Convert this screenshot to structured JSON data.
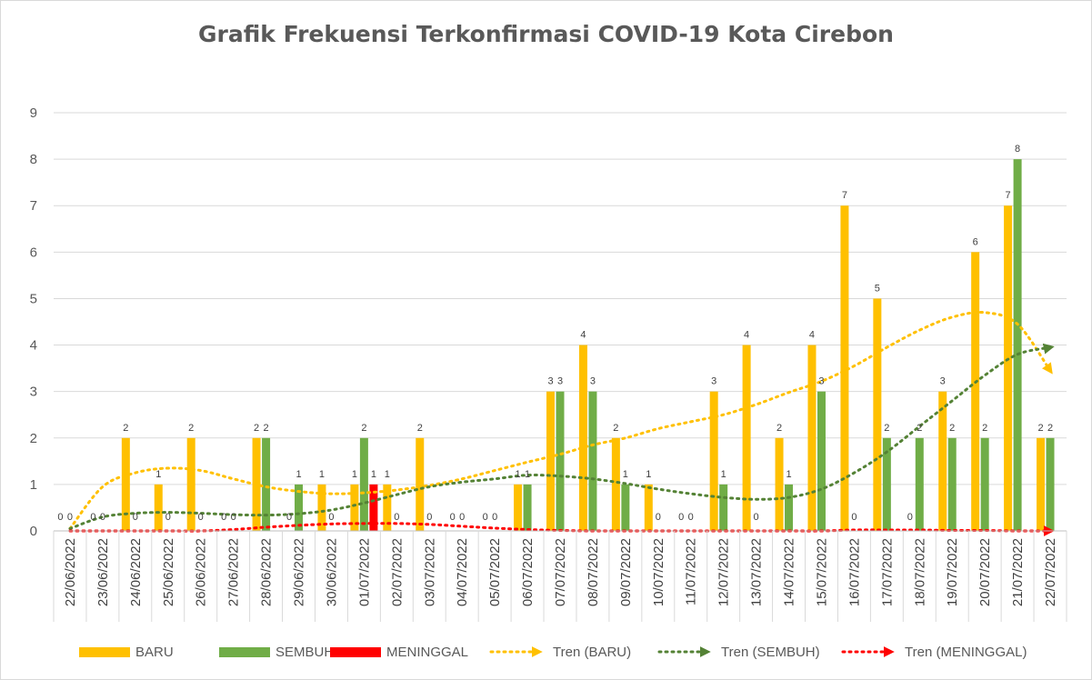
{
  "chart_data": {
    "type": "bar",
    "title": "Grafik Frekuensi Terkonfirmasi COVID-19 Kota Cirebon",
    "xlabel": "",
    "ylabel": "",
    "ylim": [
      0,
      9
    ],
    "yticks": [
      "0",
      "1",
      "2",
      "3",
      "4",
      "5",
      "6",
      "7",
      "8",
      "9"
    ],
    "grid": true,
    "legend_position": "bottom",
    "categories": [
      "22/06/2022",
      "23/06/2022",
      "24/06/2022",
      "25/06/2022",
      "26/06/2022",
      "27/06/2022",
      "28/06/2022",
      "29/06/2022",
      "30/06/2022",
      "01/07/2022",
      "02/07/2022",
      "03/07/2022",
      "04/07/2022",
      "05/07/2022",
      "06/07/2022",
      "07/07/2022",
      "08/07/2022",
      "09/07/2022",
      "10/07/2022",
      "11/07/2022",
      "12/07/2022",
      "13/07/2022",
      "14/07/2022",
      "15/07/2022",
      "16/07/2022",
      "17/07/2022",
      "18/07/2022",
      "19/07/2022",
      "20/07/2022",
      "21/07/2022",
      "22/07/2022"
    ],
    "series": [
      {
        "name": "BARU",
        "color": "#ffc000",
        "values": [
          0,
          0,
          2,
          1,
          2,
          0,
          2,
          0,
          1,
          1,
          1,
          2,
          0,
          0,
          1,
          3,
          4,
          2,
          1,
          0,
          3,
          4,
          2,
          4,
          7,
          5,
          0,
          3,
          6,
          7,
          2
        ]
      },
      {
        "name": "SEMBUH",
        "color": "#70ad47",
        "values": [
          0,
          0,
          0,
          0,
          0,
          0,
          2,
          1,
          0,
          2,
          0,
          0,
          0,
          0,
          1,
          3,
          3,
          1,
          0,
          0,
          1,
          0,
          1,
          3,
          0,
          2,
          2,
          2,
          2,
          8,
          2
        ]
      },
      {
        "name": "MENINGGAL",
        "color": "#ff0000",
        "values": [
          0,
          0,
          0,
          0,
          0,
          0,
          0,
          0,
          0,
          1,
          0,
          0,
          0,
          0,
          0,
          0,
          0,
          0,
          0,
          0,
          0,
          0,
          0,
          0,
          0,
          0,
          0,
          0,
          0,
          0,
          0
        ]
      }
    ],
    "trendlines": [
      {
        "name": "Tren (BARU)",
        "color": "#ffc000",
        "style": "dotted",
        "values": [
          0.05,
          0.95,
          1.25,
          1.35,
          1.3,
          1.12,
          0.95,
          0.85,
          0.8,
          0.82,
          0.88,
          0.98,
          1.12,
          1.3,
          1.48,
          1.65,
          1.85,
          2.0,
          2.2,
          2.35,
          2.5,
          2.72,
          2.98,
          3.22,
          3.55,
          3.95,
          4.32,
          4.6,
          4.7,
          4.45,
          3.45
        ]
      },
      {
        "name": "Tren (SEMBUH)",
        "color": "#548235",
        "style": "dotted",
        "values": [
          0.05,
          0.3,
          0.38,
          0.4,
          0.38,
          0.35,
          0.34,
          0.37,
          0.45,
          0.6,
          0.78,
          0.95,
          1.05,
          1.12,
          1.2,
          1.18,
          1.12,
          1.02,
          0.9,
          0.8,
          0.72,
          0.68,
          0.72,
          0.9,
          1.25,
          1.7,
          2.25,
          2.8,
          3.35,
          3.8,
          3.95
        ]
      },
      {
        "name": "Tren (MENINGGAL)",
        "color": "#ff0000",
        "style": "dotted",
        "values": [
          0.0,
          0.0,
          0.0,
          0.0,
          0.0,
          0.03,
          0.08,
          0.12,
          0.15,
          0.16,
          0.16,
          0.14,
          0.1,
          0.06,
          0.03,
          0.01,
          0.0,
          0.0,
          0.0,
          0.0,
          0.0,
          0.0,
          0.0,
          0.0,
          0.02,
          0.02,
          0.02,
          0.01,
          0.01,
          0.0,
          0.0
        ]
      }
    ]
  }
}
